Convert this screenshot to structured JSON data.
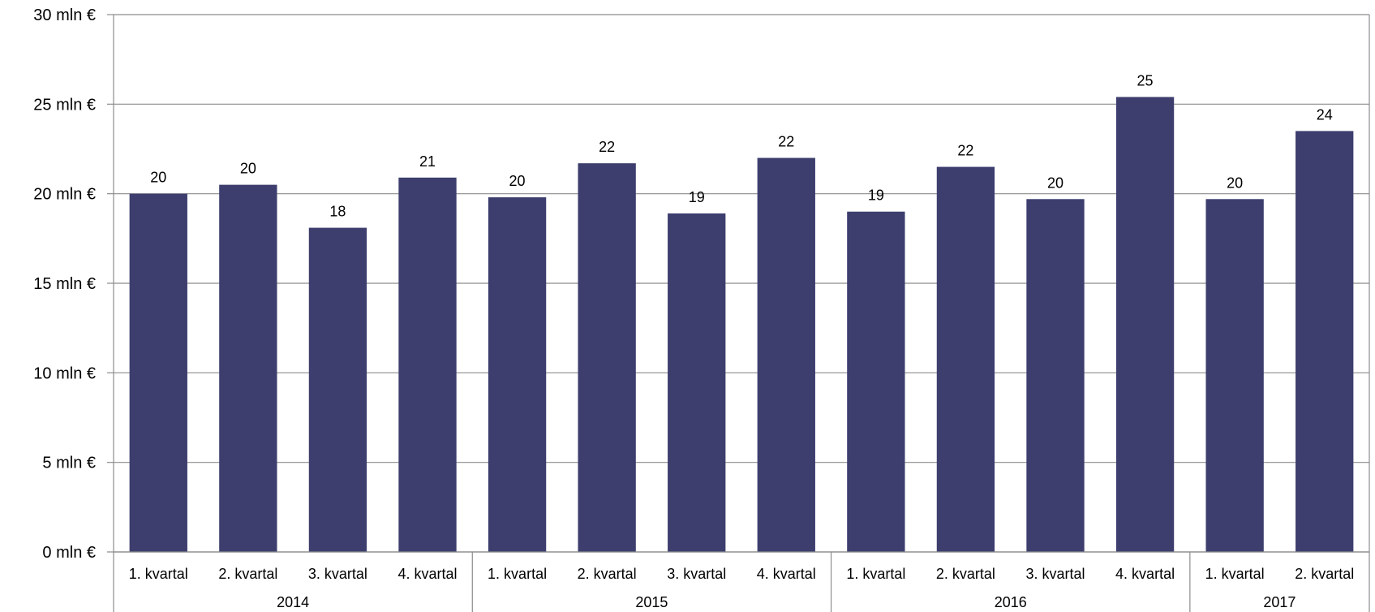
{
  "chart_data": {
    "type": "bar",
    "title": "",
    "xlabel": "",
    "ylabel": "",
    "ylim": [
      0,
      30
    ],
    "yticks": [
      0,
      5,
      10,
      15,
      20,
      25,
      30
    ],
    "ytick_labels": [
      "0 mln €",
      "5 mln €",
      "10 mln €",
      "15 mln €",
      "20 mln €",
      "25 mln €",
      "30 mln €"
    ],
    "grid": true,
    "legend": "none",
    "bar_color": "#3d3e6e",
    "groups": [
      {
        "label": "2014",
        "categories": [
          "1. kvartal",
          "2. kvartal",
          "3. kvartal",
          "4. kvartal"
        ]
      },
      {
        "label": "2015",
        "categories": [
          "1. kvartal",
          "2. kvartal",
          "3. kvartal",
          "4. kvartal"
        ]
      },
      {
        "label": "2016",
        "categories": [
          "1. kvartal",
          "2. kvartal",
          "3. kvartal",
          "4. kvartal"
        ]
      },
      {
        "label": "2017",
        "categories": [
          "1. kvartal",
          "2. kvartal"
        ]
      }
    ],
    "values": [
      20.0,
      20.5,
      18.1,
      20.9,
      19.8,
      21.7,
      18.9,
      22.0,
      19.0,
      21.5,
      19.7,
      25.4,
      19.7,
      23.5
    ],
    "data_labels": [
      "20",
      "20",
      "18",
      "21",
      "20",
      "22",
      "19",
      "22",
      "19",
      "22",
      "20",
      "25",
      "20",
      "24"
    ]
  }
}
